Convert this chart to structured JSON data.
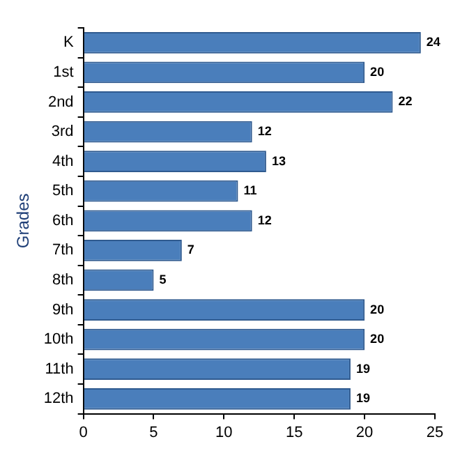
{
  "chart_data": {
    "type": "bar",
    "orientation": "horizontal",
    "ylabel": "Grades",
    "categories": [
      "K",
      "1st",
      "2nd",
      "3rd",
      "4th",
      "5th",
      "6th",
      "7th",
      "8th",
      "9th",
      "10th",
      "11th",
      "12th"
    ],
    "values": [
      24,
      20,
      22,
      12,
      13,
      11,
      12,
      7,
      5,
      20,
      20,
      19,
      19
    ],
    "color": "#4a7ebb",
    "xlim": [
      0,
      25
    ],
    "xticks": [
      0,
      5,
      10,
      15,
      20,
      25
    ],
    "grid": false,
    "legend": false,
    "data_labels": true
  }
}
